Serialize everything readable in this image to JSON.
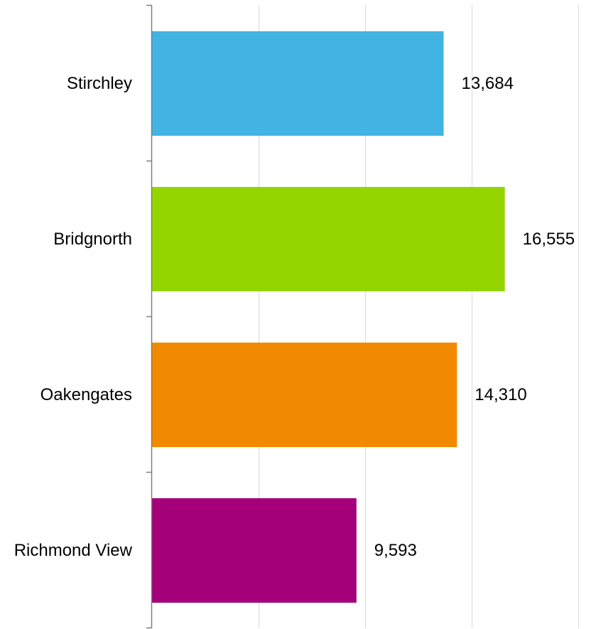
{
  "chart_data": {
    "type": "bar",
    "orientation": "horizontal",
    "categories": [
      "Stirchley",
      "Bridgnorth",
      "Oakengates",
      "Richmond View"
    ],
    "values": [
      13684,
      16555,
      14310,
      9593
    ],
    "value_labels": [
      "13,684",
      "16,555",
      "14,310",
      "9,593"
    ],
    "colors": [
      "#41b4e3",
      "#94d500",
      "#f28a00",
      "#a3007a"
    ],
    "xlim": [
      0,
      20000
    ],
    "x_gridlines": [
      5000,
      10000,
      15000,
      20000
    ],
    "grid": true,
    "legend": "none",
    "title": "",
    "xlabel": "",
    "ylabel": ""
  }
}
